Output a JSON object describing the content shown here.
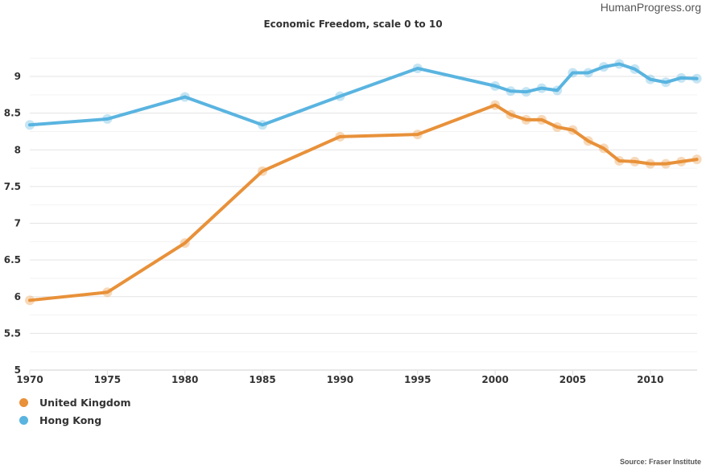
{
  "brand": "HumanProgress.org",
  "source": "Source: Fraser Institute",
  "chart_data": {
    "type": "line",
    "title": "Economic Freedom, scale 0 to 10",
    "xlabel": "",
    "ylabel": "",
    "xlim": [
      1970,
      2013
    ],
    "ylim": [
      5,
      9.5
    ],
    "yticks": [
      5,
      5.5,
      6,
      6.5,
      7,
      7.5,
      8,
      8.5,
      9
    ],
    "ytick_labels": [
      "5",
      "5.5",
      "6",
      "6.5",
      "7",
      "7.5",
      "8",
      "8.5",
      "9"
    ],
    "xticks": [
      1970,
      1975,
      1980,
      1985,
      1990,
      1995,
      2000,
      2005,
      2010
    ],
    "xtick_labels": [
      "1970",
      "1975",
      "1980",
      "1985",
      "1990",
      "1995",
      "2000",
      "2005",
      "2010"
    ],
    "grid": true,
    "legend_position": "bottom-left",
    "series": [
      {
        "name": "United Kingdom",
        "color": "#e8913a",
        "x": [
          1970,
          1975,
          1980,
          1985,
          1990,
          1995,
          2000,
          2001,
          2002,
          2003,
          2004,
          2005,
          2006,
          2007,
          2008,
          2009,
          2010,
          2011,
          2012,
          2013
        ],
        "values": [
          5.95,
          6.06,
          6.73,
          7.71,
          8.18,
          8.21,
          8.61,
          8.48,
          8.41,
          8.41,
          8.31,
          8.27,
          8.12,
          8.02,
          7.85,
          7.84,
          7.81,
          7.81,
          7.84,
          7.87
        ]
      },
      {
        "name": "Hong Kong",
        "color": "#5ab4e0",
        "x": [
          1970,
          1975,
          1980,
          1985,
          1990,
          1995,
          2000,
          2001,
          2002,
          2003,
          2004,
          2005,
          2006,
          2007,
          2008,
          2009,
          2010,
          2011,
          2012,
          2013
        ],
        "values": [
          8.34,
          8.42,
          8.72,
          8.34,
          8.73,
          9.11,
          8.87,
          8.8,
          8.79,
          8.84,
          8.81,
          9.05,
          9.05,
          9.13,
          9.17,
          9.1,
          8.96,
          8.92,
          8.98,
          8.97
        ]
      }
    ]
  }
}
